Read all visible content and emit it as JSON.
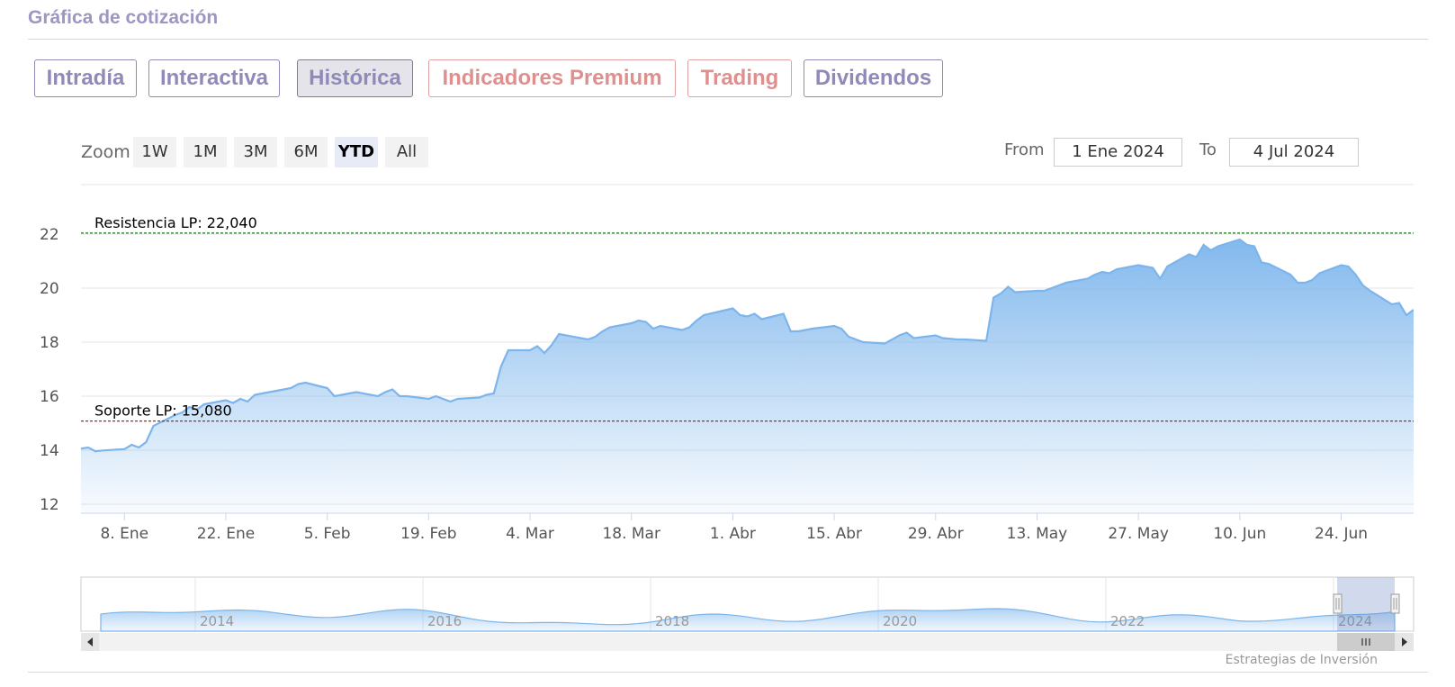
{
  "section": {
    "title": "Gráfica de cotización"
  },
  "tabs": [
    {
      "label": "Intradía",
      "active": false,
      "premium": false
    },
    {
      "label": "Interactiva",
      "active": false,
      "premium": false
    },
    {
      "label": "Histórica",
      "active": true,
      "premium": false
    },
    {
      "label": "Indicadores Premium",
      "active": false,
      "premium": true
    },
    {
      "label": "Trading",
      "active": false,
      "premium": true
    },
    {
      "label": "Dividendos",
      "active": false,
      "premium": false
    }
  ],
  "zoom": {
    "label": "Zoom",
    "buttons": [
      "1W",
      "1M",
      "3M",
      "6M",
      "YTD",
      "All"
    ],
    "selected": "YTD"
  },
  "range": {
    "from_label": "From",
    "from_value": "1 Ene 2024",
    "to_label": "To",
    "to_value": "4 Jul 2024"
  },
  "credits": "Estrategias de Inversión",
  "colors": {
    "accent": "#7cb5ec",
    "resistance": "#2e8b2e",
    "support": "#b22222",
    "tab": "#8f8ab8",
    "premium": "#e08f8f"
  },
  "chart_data": {
    "type": "area",
    "title": "",
    "xlabel": "",
    "ylabel": "",
    "ylim": [
      12,
      22
    ],
    "yticks": [
      12,
      14,
      16,
      18,
      20,
      22
    ],
    "xticks": [
      "8. Ene",
      "22. Ene",
      "5. Feb",
      "19. Feb",
      "4. Mar",
      "18. Mar",
      "1. Abr",
      "15. Abr",
      "29. Abr",
      "13. May",
      "27. May",
      "10. Jun",
      "24. Jun"
    ],
    "x_start": "2024-01-02",
    "x_end": "2024-07-04",
    "grid": true,
    "legend": "none",
    "series": [
      {
        "values": [
          [
            "2024-01-02",
            14.06
          ],
          [
            "2024-01-03",
            14.1
          ],
          [
            "2024-01-04",
            13.96
          ],
          [
            "2024-01-05",
            13.99
          ],
          [
            "2024-01-08",
            14.04
          ],
          [
            "2024-01-09",
            14.2
          ],
          [
            "2024-01-10",
            14.1
          ],
          [
            "2024-01-11",
            14.3
          ],
          [
            "2024-01-12",
            14.9
          ],
          [
            "2024-01-15",
            15.3
          ],
          [
            "2024-01-16",
            15.4
          ],
          [
            "2024-01-17",
            15.6
          ],
          [
            "2024-01-18",
            15.5
          ],
          [
            "2024-01-19",
            15.7
          ],
          [
            "2024-01-22",
            15.85
          ],
          [
            "2024-01-23",
            15.75
          ],
          [
            "2024-01-24",
            15.9
          ],
          [
            "2024-01-25",
            15.8
          ],
          [
            "2024-01-26",
            16.05
          ],
          [
            "2024-01-29",
            16.2
          ],
          [
            "2024-01-30",
            16.25
          ],
          [
            "2024-01-31",
            16.3
          ],
          [
            "2024-02-01",
            16.45
          ],
          [
            "2024-02-02",
            16.5
          ],
          [
            "2024-02-05",
            16.3
          ],
          [
            "2024-02-06",
            16.0
          ],
          [
            "2024-02-07",
            16.05
          ],
          [
            "2024-02-08",
            16.1
          ],
          [
            "2024-02-09",
            16.15
          ],
          [
            "2024-02-12",
            16.0
          ],
          [
            "2024-02-13",
            16.15
          ],
          [
            "2024-02-14",
            16.25
          ],
          [
            "2024-02-15",
            16.0
          ],
          [
            "2024-02-16",
            16.0
          ],
          [
            "2024-02-19",
            15.9
          ],
          [
            "2024-02-20",
            16.0
          ],
          [
            "2024-02-21",
            15.9
          ],
          [
            "2024-02-22",
            15.8
          ],
          [
            "2024-02-23",
            15.9
          ],
          [
            "2024-02-26",
            15.95
          ],
          [
            "2024-02-27",
            16.05
          ],
          [
            "2024-02-28",
            16.1
          ],
          [
            "2024-02-29",
            17.1
          ],
          [
            "2024-03-01",
            17.7
          ],
          [
            "2024-03-04",
            17.7
          ],
          [
            "2024-03-05",
            17.85
          ],
          [
            "2024-03-06",
            17.6
          ],
          [
            "2024-03-07",
            17.9
          ],
          [
            "2024-03-08",
            18.3
          ],
          [
            "2024-03-11",
            18.15
          ],
          [
            "2024-03-12",
            18.1
          ],
          [
            "2024-03-13",
            18.2
          ],
          [
            "2024-03-14",
            18.4
          ],
          [
            "2024-03-15",
            18.55
          ],
          [
            "2024-03-18",
            18.7
          ],
          [
            "2024-03-19",
            18.8
          ],
          [
            "2024-03-20",
            18.75
          ],
          [
            "2024-03-21",
            18.5
          ],
          [
            "2024-03-22",
            18.6
          ],
          [
            "2024-03-25",
            18.45
          ],
          [
            "2024-03-26",
            18.55
          ],
          [
            "2024-03-27",
            18.8
          ],
          [
            "2024-03-28",
            19.0
          ],
          [
            "2024-04-01",
            19.25
          ],
          [
            "2024-04-02",
            19.0
          ],
          [
            "2024-04-03",
            18.95
          ],
          [
            "2024-04-04",
            19.05
          ],
          [
            "2024-04-05",
            18.85
          ],
          [
            "2024-04-08",
            19.05
          ],
          [
            "2024-04-09",
            18.4
          ],
          [
            "2024-04-10",
            18.4
          ],
          [
            "2024-04-11",
            18.45
          ],
          [
            "2024-04-12",
            18.5
          ],
          [
            "2024-04-15",
            18.6
          ],
          [
            "2024-04-16",
            18.5
          ],
          [
            "2024-04-17",
            18.2
          ],
          [
            "2024-04-18",
            18.1
          ],
          [
            "2024-04-19",
            18.0
          ],
          [
            "2024-04-22",
            17.95
          ],
          [
            "2024-04-23",
            18.1
          ],
          [
            "2024-04-24",
            18.25
          ],
          [
            "2024-04-25",
            18.35
          ],
          [
            "2024-04-26",
            18.15
          ],
          [
            "2024-04-29",
            18.25
          ],
          [
            "2024-04-30",
            18.15
          ],
          [
            "2024-05-02",
            18.1
          ],
          [
            "2024-05-03",
            18.1
          ],
          [
            "2024-05-06",
            18.05
          ],
          [
            "2024-05-07",
            19.65
          ],
          [
            "2024-05-08",
            19.8
          ],
          [
            "2024-05-09",
            20.05
          ],
          [
            "2024-05-10",
            19.85
          ],
          [
            "2024-05-13",
            19.9
          ],
          [
            "2024-05-14",
            19.9
          ],
          [
            "2024-05-15",
            20.0
          ],
          [
            "2024-05-16",
            20.1
          ],
          [
            "2024-05-17",
            20.2
          ],
          [
            "2024-05-20",
            20.35
          ],
          [
            "2024-05-21",
            20.5
          ],
          [
            "2024-05-22",
            20.6
          ],
          [
            "2024-05-23",
            20.55
          ],
          [
            "2024-05-24",
            20.7
          ],
          [
            "2024-05-27",
            20.85
          ],
          [
            "2024-05-28",
            20.8
          ],
          [
            "2024-05-29",
            20.75
          ],
          [
            "2024-05-30",
            20.35
          ],
          [
            "2024-05-31",
            20.8
          ],
          [
            "2024-06-03",
            21.25
          ],
          [
            "2024-06-04",
            21.15
          ],
          [
            "2024-06-05",
            21.6
          ],
          [
            "2024-06-06",
            21.4
          ],
          [
            "2024-06-07",
            21.55
          ],
          [
            "2024-06-10",
            21.8
          ],
          [
            "2024-06-11",
            21.6
          ],
          [
            "2024-06-12",
            21.55
          ],
          [
            "2024-06-13",
            20.95
          ],
          [
            "2024-06-14",
            20.9
          ],
          [
            "2024-06-17",
            20.5
          ],
          [
            "2024-06-18",
            20.2
          ],
          [
            "2024-06-19",
            20.2
          ],
          [
            "2024-06-20",
            20.3
          ],
          [
            "2024-06-21",
            20.55
          ],
          [
            "2024-06-24",
            20.85
          ],
          [
            "2024-06-25",
            20.8
          ],
          [
            "2024-06-26",
            20.5
          ],
          [
            "2024-06-27",
            20.1
          ],
          [
            "2024-06-28",
            19.9
          ],
          [
            "2024-07-01",
            19.4
          ],
          [
            "2024-07-02",
            19.45
          ],
          [
            "2024-07-03",
            19.0
          ],
          [
            "2024-07-04",
            19.2
          ]
        ]
      }
    ],
    "plot_lines": [
      {
        "label": "Resistencia LP: 22,040",
        "value": 22.04,
        "color": "#2e8b2e"
      },
      {
        "label": "Soporte LP: 15,080",
        "value": 15.08,
        "color": "#b22222"
      }
    ],
    "navigator": {
      "years": [
        "2014",
        "2016",
        "2018",
        "2020",
        "2022",
        "2024"
      ]
    }
  }
}
